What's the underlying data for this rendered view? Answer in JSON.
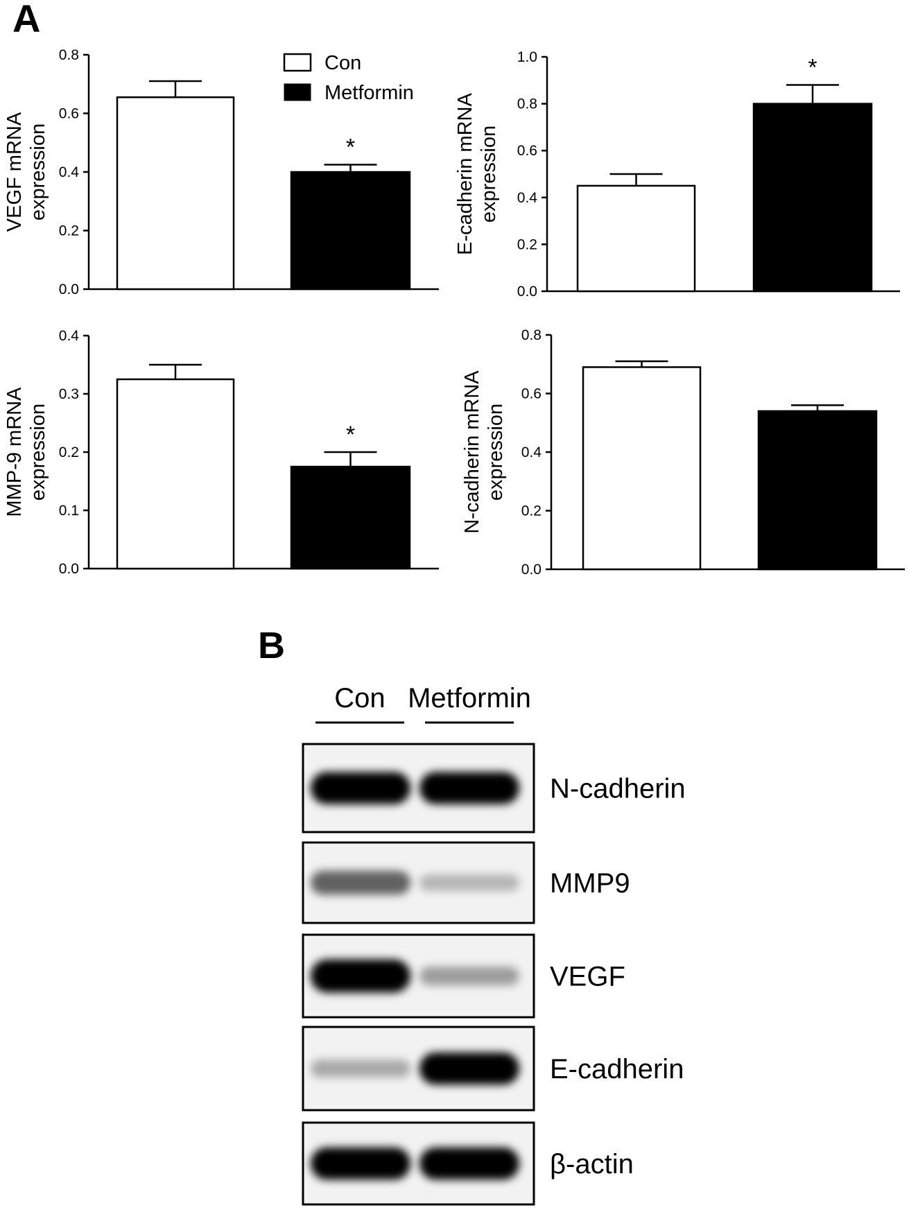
{
  "panel_a_label": "A",
  "panel_b_label": "B",
  "legend": {
    "con": "Con",
    "metformin": "Metformin"
  },
  "colors": {
    "con": "#ffffff",
    "metformin": "#000000",
    "axis": "#000000"
  },
  "chart_data": [
    {
      "type": "bar",
      "ylabel": [
        "VEGF mRNA",
        "expression"
      ],
      "categories": [
        "Con",
        "Metformin"
      ],
      "values": [
        0.655,
        0.4
      ],
      "errors": [
        0.055,
        0.025
      ],
      "significant": [
        false,
        true
      ],
      "ylim": [
        0,
        0.8
      ],
      "yticks": [
        "0.0",
        "0.2",
        "0.4",
        "0.6",
        "0.8"
      ],
      "tickvals": [
        0,
        0.2,
        0.4,
        0.6,
        0.8
      ],
      "legend": "top-right",
      "grid": false
    },
    {
      "type": "bar",
      "ylabel": [
        "E-cadherin mRNA",
        "expression"
      ],
      "categories": [
        "Con",
        "Metformin"
      ],
      "values": [
        0.45,
        0.8
      ],
      "errors": [
        0.05,
        0.08
      ],
      "significant": [
        false,
        true
      ],
      "ylim": [
        0,
        1.0
      ],
      "yticks": [
        "0.0",
        "0.2",
        "0.4",
        "0.6",
        "0.8",
        "1.0"
      ],
      "tickvals": [
        0,
        0.2,
        0.4,
        0.6,
        0.8,
        1.0
      ],
      "grid": false
    },
    {
      "type": "bar",
      "ylabel": [
        "MMP-9 mRNA",
        "expression"
      ],
      "categories": [
        "Con",
        "Metformin"
      ],
      "values": [
        0.325,
        0.175
      ],
      "errors": [
        0.025,
        0.025
      ],
      "significant": [
        false,
        true
      ],
      "ylim": [
        0,
        0.4
      ],
      "yticks": [
        "0.0",
        "0.1",
        "0.2",
        "0.3",
        "0.4"
      ],
      "tickvals": [
        0,
        0.1,
        0.2,
        0.3,
        0.4
      ],
      "grid": false
    },
    {
      "type": "bar",
      "ylabel": [
        "N-cadherin mRNA",
        "expression"
      ],
      "categories": [
        "Con",
        "Metformin"
      ],
      "values": [
        0.69,
        0.54
      ],
      "errors": [
        0.02,
        0.02
      ],
      "significant": [
        false,
        false
      ],
      "ylim": [
        0,
        0.8
      ],
      "yticks": [
        "0.0",
        "0.2",
        "0.4",
        "0.6",
        "0.8"
      ],
      "tickvals": [
        0,
        0.2,
        0.4,
        0.6,
        0.8
      ],
      "grid": false
    }
  ],
  "significance_marker": "*",
  "blot": {
    "lanes": [
      "Con",
      "Metformin"
    ],
    "rows": [
      {
        "label": "N-cadherin",
        "intensity": [
          0.95,
          0.95
        ]
      },
      {
        "label": "MMP9",
        "intensity": [
          0.55,
          0.2
        ]
      },
      {
        "label": "VEGF",
        "intensity": [
          1.0,
          0.3
        ]
      },
      {
        "label": "E-cadherin",
        "intensity": [
          0.25,
          0.95
        ]
      },
      {
        "label": "β-actin",
        "intensity": [
          0.95,
          0.95
        ]
      }
    ]
  }
}
